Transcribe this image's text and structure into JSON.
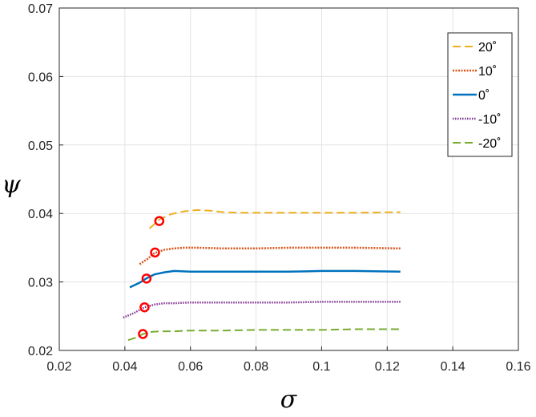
{
  "chart_data": {
    "type": "line",
    "xlabel": "σ",
    "ylabel": "ψ",
    "xlim": [
      0.02,
      0.16
    ],
    "ylim": [
      0.02,
      0.07
    ],
    "xticks": [
      "0.02",
      "0.04",
      "0.06",
      "0.08",
      "0.1",
      "0.12",
      "0.14",
      "0.16"
    ],
    "yticks": [
      "0.02",
      "0.03",
      "0.04",
      "0.05",
      "0.06",
      "0.07"
    ],
    "grid": true,
    "legend_position": "top-right",
    "series": [
      {
        "name": "20˚",
        "color": "#EDB120",
        "dash": "10,5",
        "width": 2,
        "x": [
          0.0475,
          0.0505,
          0.054,
          0.058,
          0.062,
          0.066,
          0.07,
          0.075,
          0.08,
          0.09,
          0.1,
          0.11,
          0.124
        ],
        "y": [
          0.0378,
          0.0391,
          0.0399,
          0.0403,
          0.0405,
          0.0404,
          0.0402,
          0.0401,
          0.0401,
          0.0401,
          0.0401,
          0.0401,
          0.0402
        ]
      },
      {
        "name": "10˚",
        "color": "#D95319",
        "dash": "2,1.5",
        "width": 2.5,
        "x": [
          0.0445,
          0.047,
          0.049,
          0.052,
          0.055,
          0.058,
          0.062,
          0.07,
          0.08,
          0.09,
          0.1,
          0.11,
          0.124
        ],
        "y": [
          0.0326,
          0.0334,
          0.0342,
          0.0347,
          0.0349,
          0.035,
          0.035,
          0.0349,
          0.0349,
          0.035,
          0.035,
          0.035,
          0.0349
        ]
      },
      {
        "name": "0˚",
        "color": "#0072BD",
        "dash": "",
        "width": 2.5,
        "x": [
          0.0415,
          0.0445,
          0.0465,
          0.049,
          0.052,
          0.055,
          0.06,
          0.07,
          0.08,
          0.09,
          0.1,
          0.11,
          0.124
        ],
        "y": [
          0.0292,
          0.0299,
          0.0305,
          0.0311,
          0.0314,
          0.0316,
          0.0315,
          0.0315,
          0.0315,
          0.0315,
          0.0316,
          0.0316,
          0.0315
        ]
      },
      {
        "name": "-10˚",
        "color": "#7E2F8E",
        "dash": "1.5,1.5",
        "width": 2.5,
        "x": [
          0.0395,
          0.0425,
          0.046,
          0.049,
          0.052,
          0.055,
          0.06,
          0.07,
          0.08,
          0.09,
          0.1,
          0.11,
          0.124
        ],
        "y": [
          0.0248,
          0.0254,
          0.0263,
          0.0267,
          0.0269,
          0.0269,
          0.027,
          0.027,
          0.027,
          0.027,
          0.0271,
          0.0271,
          0.0271
        ]
      },
      {
        "name": "-20˚",
        "color": "#77AC30",
        "dash": "10,5",
        "width": 2,
        "x": [
          0.041,
          0.0435,
          0.0455,
          0.048,
          0.051,
          0.055,
          0.06,
          0.07,
          0.08,
          0.09,
          0.1,
          0.11,
          0.124
        ],
        "y": [
          0.0215,
          0.0219,
          0.0224,
          0.0227,
          0.0228,
          0.0228,
          0.0229,
          0.0229,
          0.023,
          0.023,
          0.023,
          0.0231,
          0.0231
        ]
      }
    ],
    "markers": {
      "color": "#FF0000",
      "shape": "circle",
      "points": [
        {
          "x": 0.0505,
          "y": 0.0389
        },
        {
          "x": 0.0492,
          "y": 0.0343
        },
        {
          "x": 0.0466,
          "y": 0.0305
        },
        {
          "x": 0.046,
          "y": 0.0263
        },
        {
          "x": 0.0455,
          "y": 0.0224
        }
      ]
    }
  }
}
